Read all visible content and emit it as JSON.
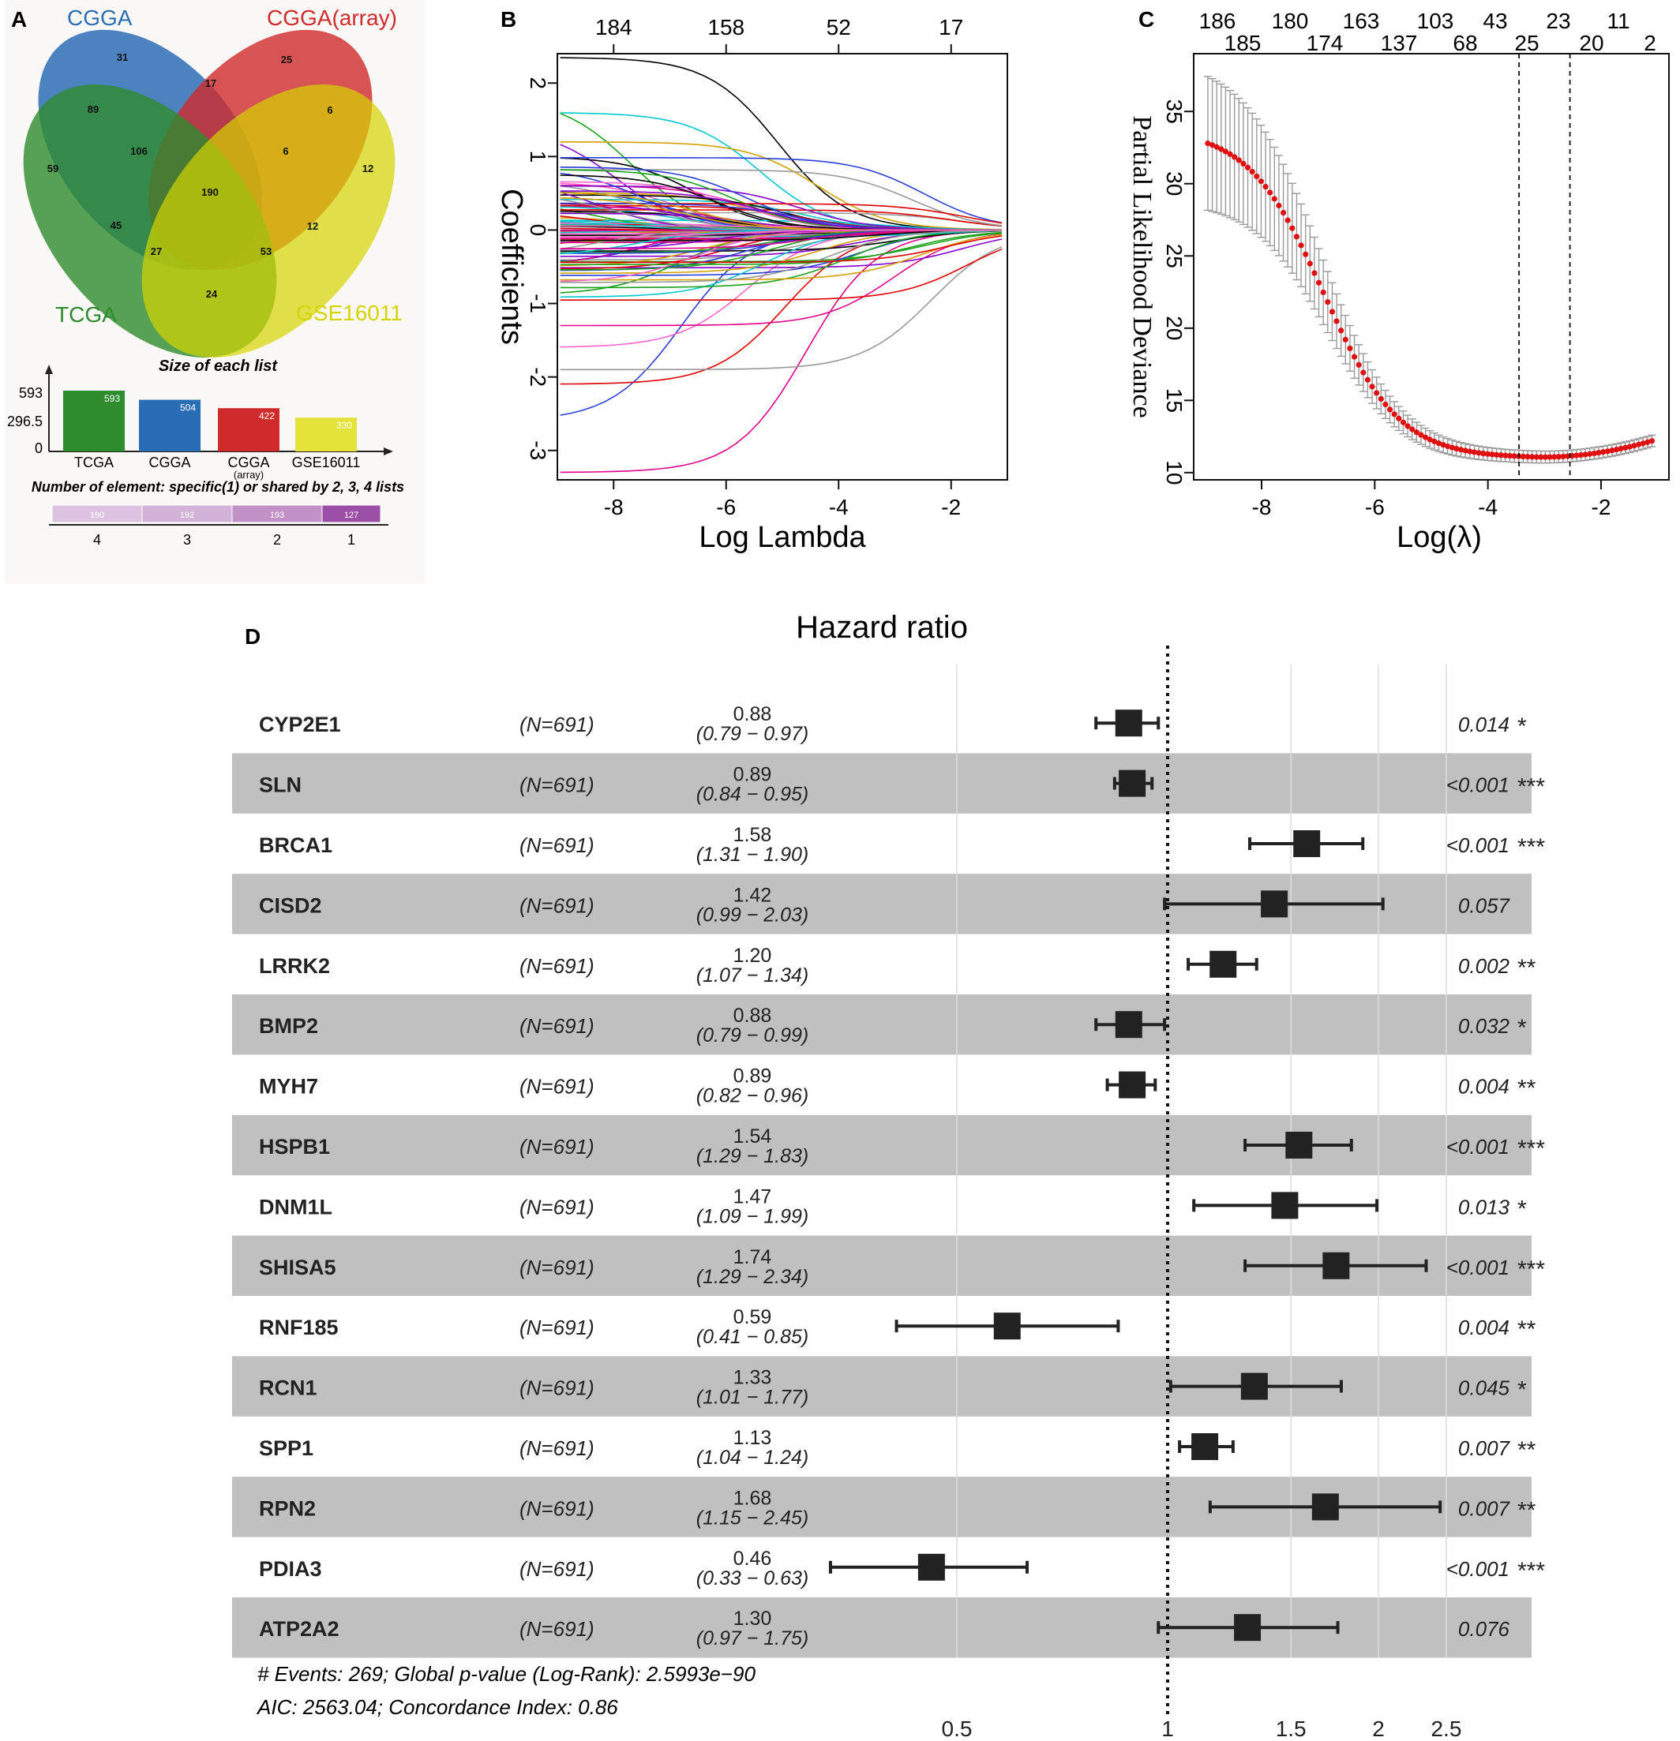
{
  "panels": {
    "A": {
      "letter": "A",
      "venn": {
        "labels": [
          {
            "name": "CGGA",
            "color": "#2b6db5"
          },
          {
            "name": "CGGA(array)",
            "color": "#cf2b2b"
          },
          {
            "name": "TCGA",
            "color": "#2e8b2e"
          },
          {
            "name": "GSE16011",
            "color": "#d4d400"
          }
        ],
        "counts": [
          "31",
          "25",
          "17",
          "89",
          "6",
          "106",
          "6",
          "59",
          "190",
          "12",
          "45",
          "12",
          "27",
          "53",
          "24"
        ]
      },
      "size_chart": {
        "title": "Size of each list",
        "yticks": [
          "593",
          "296.5",
          "0"
        ],
        "categories": [
          "TCGA",
          "CGGA",
          "CGGA",
          "GSE16011"
        ],
        "category_sub": [
          "",
          "",
          "(array)",
          ""
        ],
        "values": [
          593,
          504,
          422,
          330
        ],
        "value_labels": [
          "593",
          "504",
          "422",
          "330"
        ],
        "colors": [
          "#2e8b2e",
          "#2b6db5",
          "#cf2b2b",
          "#e3e33a"
        ]
      },
      "element_chart": {
        "title": "Number of element: specific(1) or shared by 2, 3, 4 lists",
        "categories": [
          "4",
          "3",
          "2",
          "1"
        ],
        "values": [
          190,
          192,
          193,
          127
        ],
        "value_labels": [
          "190",
          "192",
          "193",
          "127"
        ],
        "colors": [
          "#dcc3df",
          "#d2b2d6",
          "#c291c8",
          "#9b4ea6"
        ]
      }
    },
    "B": {
      "letter": "B",
      "chart_data": {
        "type": "line",
        "xlabel": "Log Lambda",
        "ylabel": "Coefficients",
        "xlim": [
          -9,
          -1
        ],
        "ylim": [
          -3.4,
          2.4
        ],
        "xticks": [
          "-8",
          "-6",
          "-4",
          "-2"
        ],
        "yticks": [
          "2",
          "1",
          "0",
          "-1",
          "-2",
          "-3"
        ],
        "top_axis_ticks": [
          "184",
          "158",
          "52",
          "17"
        ],
        "top_axis_positions": [
          -8,
          -6,
          -4,
          -2
        ]
      }
    },
    "C": {
      "letter": "C",
      "chart_data": {
        "type": "scatter",
        "xlabel": "Log(λ)",
        "ylabel": "Partial Likelihood Deviance",
        "xlim": [
          -9.2,
          -0.8
        ],
        "ylim": [
          9.5,
          39
        ],
        "xticks": [
          "-8",
          "-6",
          "-4",
          "-2"
        ],
        "yticks": [
          "35",
          "30",
          "25",
          "20",
          "15",
          "10"
        ],
        "top_axis_row1": [
          "186",
          "180",
          "163",
          "103",
          "43",
          "23",
          "11"
        ],
        "top_axis_row2": [
          "185",
          "174",
          "137",
          "68",
          "25",
          "20",
          "2"
        ],
        "vlines": [
          -3.45,
          -2.55
        ]
      }
    },
    "D": {
      "letter": "D",
      "chart_data": {
        "type": "forest",
        "title": "Hazard ratio",
        "xscale": "log",
        "xticks": [
          "0.5",
          "1",
          "1.5",
          "2",
          "2.5"
        ],
        "reference_line": 1,
        "rows": [
          {
            "gene": "CYP2E1",
            "n": "(N=691)",
            "hr": "0.88",
            "ci": "(0.79 − 0.97)",
            "hr_v": 0.88,
            "lo": 0.79,
            "hi": 0.97,
            "p": "0.014",
            "stars": "*"
          },
          {
            "gene": "SLN",
            "n": "(N=691)",
            "hr": "0.89",
            "ci": "(0.84 − 0.95)",
            "hr_v": 0.89,
            "lo": 0.84,
            "hi": 0.95,
            "p": "<0.001",
            "stars": "***"
          },
          {
            "gene": "BRCA1",
            "n": "(N=691)",
            "hr": "1.58",
            "ci": "(1.31 − 1.90)",
            "hr_v": 1.58,
            "lo": 1.31,
            "hi": 1.9,
            "p": "<0.001",
            "stars": "***"
          },
          {
            "gene": "CISD2",
            "n": "(N=691)",
            "hr": "1.42",
            "ci": "(0.99 − 2.03)",
            "hr_v": 1.42,
            "lo": 0.99,
            "hi": 2.03,
            "p": "0.057",
            "stars": ""
          },
          {
            "gene": "LRRK2",
            "n": "(N=691)",
            "hr": "1.20",
            "ci": "(1.07 − 1.34)",
            "hr_v": 1.2,
            "lo": 1.07,
            "hi": 1.34,
            "p": "0.002",
            "stars": "**"
          },
          {
            "gene": "BMP2",
            "n": "(N=691)",
            "hr": "0.88",
            "ci": "(0.79 − 0.99)",
            "hr_v": 0.88,
            "lo": 0.79,
            "hi": 0.99,
            "p": "0.032",
            "stars": "*"
          },
          {
            "gene": "MYH7",
            "n": "(N=691)",
            "hr": "0.89",
            "ci": "(0.82 − 0.96)",
            "hr_v": 0.89,
            "lo": 0.82,
            "hi": 0.96,
            "p": "0.004",
            "stars": "**"
          },
          {
            "gene": "HSPB1",
            "n": "(N=691)",
            "hr": "1.54",
            "ci": "(1.29 − 1.83)",
            "hr_v": 1.54,
            "lo": 1.29,
            "hi": 1.83,
            "p": "<0.001",
            "stars": "***"
          },
          {
            "gene": "DNM1L",
            "n": "(N=691)",
            "hr": "1.47",
            "ci": "(1.09 − 1.99)",
            "hr_v": 1.47,
            "lo": 1.09,
            "hi": 1.99,
            "p": "0.013",
            "stars": "*"
          },
          {
            "gene": "SHISA5",
            "n": "(N=691)",
            "hr": "1.74",
            "ci": "(1.29 − 2.34)",
            "hr_v": 1.74,
            "lo": 1.29,
            "hi": 2.34,
            "p": "<0.001",
            "stars": "***"
          },
          {
            "gene": "RNF185",
            "n": "(N=691)",
            "hr": "0.59",
            "ci": "(0.41 − 0.85)",
            "hr_v": 0.59,
            "lo": 0.41,
            "hi": 0.85,
            "p": "0.004",
            "stars": "**"
          },
          {
            "gene": "RCN1",
            "n": "(N=691)",
            "hr": "1.33",
            "ci": "(1.01 − 1.77)",
            "hr_v": 1.33,
            "lo": 1.01,
            "hi": 1.77,
            "p": "0.045",
            "stars": "*"
          },
          {
            "gene": "SPP1",
            "n": "(N=691)",
            "hr": "1.13",
            "ci": "(1.04 − 1.24)",
            "hr_v": 1.13,
            "lo": 1.04,
            "hi": 1.24,
            "p": "0.007",
            "stars": "**"
          },
          {
            "gene": "RPN2",
            "n": "(N=691)",
            "hr": "1.68",
            "ci": "(1.15 − 2.45)",
            "hr_v": 1.68,
            "lo": 1.15,
            "hi": 2.45,
            "p": "0.007",
            "stars": "**"
          },
          {
            "gene": "PDIA3",
            "n": "(N=691)",
            "hr": "0.46",
            "ci": "(0.33 − 0.63)",
            "hr_v": 0.46,
            "lo": 0.33,
            "hi": 0.63,
            "p": "<0.001",
            "stars": "***"
          },
          {
            "gene": "ATP2A2",
            "n": "(N=691)",
            "hr": "1.30",
            "ci": "(0.97 − 1.75)",
            "hr_v": 1.3,
            "lo": 0.97,
            "hi": 1.75,
            "p": "0.076",
            "stars": ""
          }
        ],
        "footer": [
          "# Events: 269; Global p-value (Log-Rank): 2.5993e−90",
          "AIC: 2563.04; Concordance Index: 0.86"
        ]
      }
    }
  }
}
